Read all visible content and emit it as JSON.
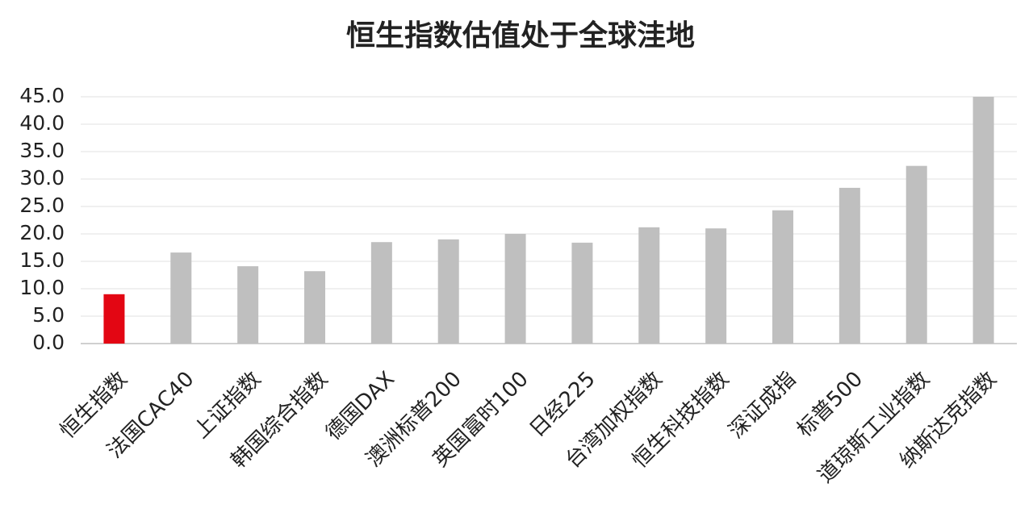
{
  "chart_data": {
    "type": "bar",
    "title": "恒生指数估值处于全球洼地",
    "categories": [
      "恒生指数",
      "法国CAC40",
      "上证指数",
      "韩国综合指数",
      "德国DAX",
      "澳洲标普200",
      "英国富时100",
      "日经225",
      "台湾加权指数",
      "恒生科技指数",
      "深证成指",
      "标普500",
      "道琼斯工业指数",
      "纳斯达克指数"
    ],
    "values": [
      9.0,
      16.6,
      14.1,
      13.2,
      18.5,
      19.0,
      20.0,
      18.4,
      21.2,
      21.0,
      24.3,
      28.4,
      32.4,
      45.0
    ],
    "colors": [
      "#e30613",
      "#bfbfbf",
      "#bfbfbf",
      "#bfbfbf",
      "#bfbfbf",
      "#bfbfbf",
      "#bfbfbf",
      "#bfbfbf",
      "#bfbfbf",
      "#bfbfbf",
      "#bfbfbf",
      "#bfbfbf",
      "#bfbfbf",
      "#bfbfbf"
    ],
    "ylim": [
      0,
      45
    ],
    "yticks": [
      {
        "value": 0,
        "label": "0.0"
      },
      {
        "value": 5,
        "label": "5.0"
      },
      {
        "value": 10,
        "label": "10.0"
      },
      {
        "value": 15,
        "label": "15.0"
      },
      {
        "value": 20,
        "label": "20.0"
      },
      {
        "value": 25,
        "label": "25.0"
      },
      {
        "value": 30,
        "label": "30.0"
      },
      {
        "value": 35,
        "label": "35.0"
      },
      {
        "value": 40,
        "label": "40.0"
      },
      {
        "value": 45,
        "label": "45.0"
      }
    ],
    "grid": true
  }
}
